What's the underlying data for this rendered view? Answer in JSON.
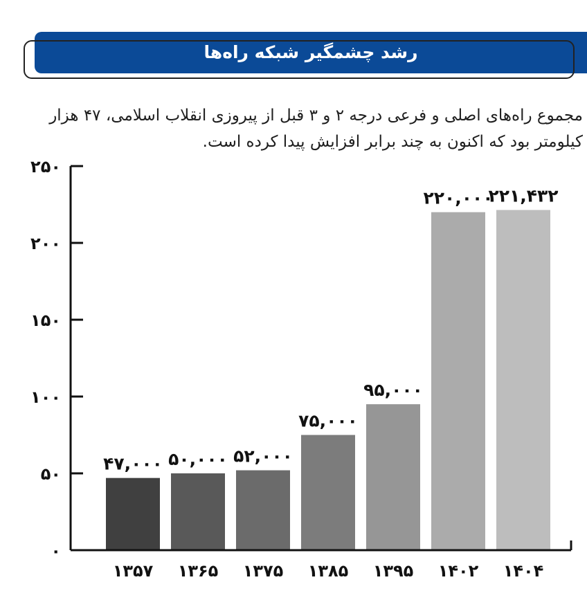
{
  "header": {
    "title": "رشد چشمگیر شبکه راه‌ها",
    "subtitle": "مجموع راه‌های اصلی و فرعی درجه ۲ و ۳ قبل از پیروزی انقلاب اسلامی، ۴۷ هزار کیلومتر بود که اکنون به چند برابر افزایش پیدا کرده است."
  },
  "colors": {
    "title_bar": "#0b4a97",
    "axis": "#111111"
  },
  "chart_data": {
    "type": "bar",
    "title": "رشد چشمگیر شبکه راه‌ها",
    "xlabel": "",
    "ylabel": "",
    "categories": [
      "۱۳۵۷",
      "۱۳۶۵",
      "۱۳۷۵",
      "۱۳۸۵",
      "۱۳۹۵",
      "۱۴۰۲",
      "۱۴۰۴"
    ],
    "values": [
      47000,
      50000,
      52000,
      75000,
      95000,
      220000,
      221432
    ],
    "value_labels": [
      "۴۷,۰۰۰",
      "۵۰,۰۰۰",
      "۵۲,۰۰۰",
      "۷۵,۰۰۰",
      "۹۵,۰۰۰",
      "۲۲۰,۰۰۰",
      "۲۲۱,۴۳۲"
    ],
    "bar_colors": [
      "#404040",
      "#595959",
      "#6b6b6b",
      "#7c7c7c",
      "#969696",
      "#ababab",
      "#bdbdbd"
    ],
    "y_ticks": [
      0,
      50,
      100,
      150,
      200,
      250
    ],
    "y_tick_labels": [
      "۰",
      "۵۰",
      "۱۰۰",
      "۱۵۰",
      "۲۰۰",
      "۲۵۰"
    ],
    "ylim": [
      0,
      250
    ],
    "grid": false,
    "legend": "none"
  }
}
